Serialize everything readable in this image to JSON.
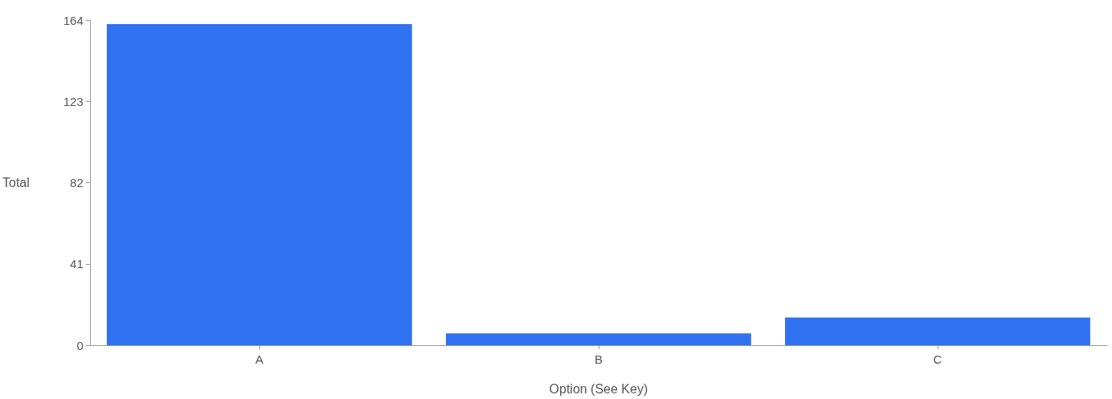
{
  "chart_data": {
    "type": "bar",
    "xlabel": "Option (See Key)",
    "ylabel": "Total",
    "categories": [
      "A",
      "B",
      "C"
    ],
    "values": [
      162,
      6,
      14
    ],
    "color": "#3071f2",
    "ylim": [
      0,
      164
    ],
    "yticks": [
      0,
      41,
      82,
      123,
      164
    ],
    "grid": false
  }
}
